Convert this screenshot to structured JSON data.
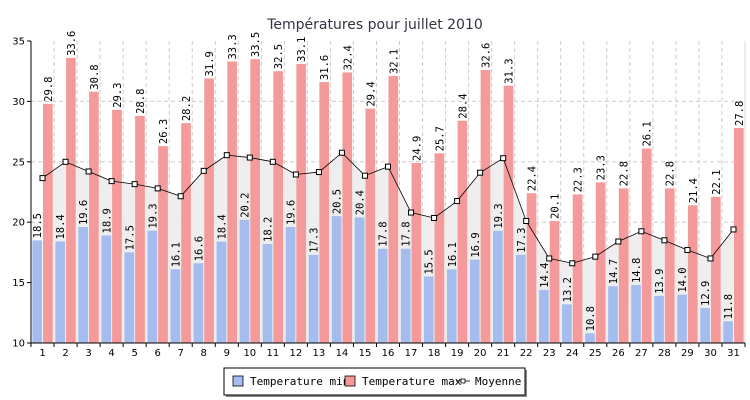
{
  "chart_data": {
    "type": "bar",
    "title": "Températures pour juillet 2010",
    "categories": [
      "1",
      "2",
      "3",
      "4",
      "5",
      "6",
      "7",
      "8",
      "9",
      "10",
      "11",
      "12",
      "13",
      "14",
      "15",
      "16",
      "17",
      "18",
      "19",
      "20",
      "21",
      "22",
      "23",
      "24",
      "25",
      "26",
      "27",
      "28",
      "29",
      "30",
      "31"
    ],
    "ylim": [
      10,
      35
    ],
    "yticks": [
      "10",
      "15",
      "20",
      "25",
      "30",
      "35"
    ],
    "grid": true,
    "legend_position": "bottom",
    "series": [
      {
        "name": "Temperature min",
        "type": "bar",
        "color": "#a4bdee",
        "values": [
          18.5,
          18.4,
          19.6,
          18.9,
          17.5,
          19.3,
          16.1,
          16.6,
          18.4,
          20.2,
          18.2,
          19.6,
          17.3,
          20.5,
          20.4,
          17.8,
          17.8,
          15.5,
          16.1,
          16.9,
          19.3,
          17.3,
          14.4,
          13.2,
          10.8,
          14.7,
          14.8,
          13.9,
          14.0,
          12.9,
          11.8
        ],
        "labels": [
          "18.5",
          "18.4",
          "19.6",
          "18.9",
          "17.5",
          "19.3",
          "16.1",
          "16.6",
          "18.4",
          "20.2",
          "18.2",
          "19.6",
          "17.3",
          "20.5",
          "20.4",
          "17.8",
          "17.8",
          "15.5",
          "16.1",
          "16.9",
          "19.3",
          "17.3",
          "14.4",
          "13.2",
          "10.8",
          "14.7",
          "14.8",
          "13.9",
          "14.0",
          "12.9",
          "11.8"
        ]
      },
      {
        "name": "Temperature max",
        "type": "bar",
        "color": "#f59a9a",
        "values": [
          29.8,
          33.6,
          30.8,
          29.3,
          28.8,
          26.3,
          28.2,
          31.9,
          33.3,
          33.5,
          32.5,
          33.1,
          31.6,
          32.4,
          29.4,
          32.1,
          24.9,
          25.7,
          28.4,
          32.6,
          31.3,
          22.4,
          20.1,
          22.3,
          23.3,
          22.8,
          26.1,
          22.8,
          21.4,
          22.1,
          27.8
        ],
        "labels": [
          "29.8",
          "33.6",
          "30.8",
          "29.3",
          "28.8",
          "26.3",
          "28.2",
          "31.9",
          "33.3",
          "33.5",
          "32.5",
          "33.1",
          "31.6",
          "32.4",
          "29.4",
          "32.1",
          "24.9",
          "25.7",
          "28.4",
          "32.6",
          "31.3",
          "22.4",
          "20.1",
          "22.3",
          "23.3",
          "22.8",
          "26.1",
          "22.8",
          "21.4",
          "22.1",
          "27.8"
        ]
      },
      {
        "name": "Moyenne",
        "type": "line",
        "color": "#000000",
        "fill": "#ececec",
        "values": [
          23.65,
          25.0,
          24.2,
          23.4,
          23.15,
          22.8,
          22.15,
          24.25,
          25.55,
          25.35,
          25.0,
          23.95,
          24.15,
          25.75,
          23.85,
          24.6,
          20.8,
          20.35,
          21.75,
          24.1,
          25.3,
          20.1,
          17.0,
          16.6,
          17.15,
          18.4,
          19.25,
          18.5,
          17.7,
          17.0,
          19.4
        ]
      }
    ]
  }
}
